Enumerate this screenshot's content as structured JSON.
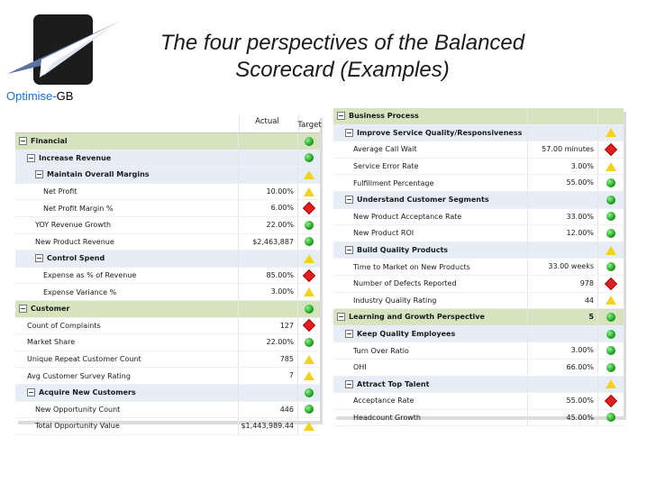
{
  "header": {
    "brand_primary": "Optimise-",
    "brand_secondary": "GB",
    "title_line1": "The four perspectives of the Balanced",
    "title_line2": "Scorecard (Examples)"
  },
  "left": {
    "col_actual": "Actual",
    "col_target": "Target",
    "rows": [
      {
        "label": "Financial",
        "value": "",
        "status": "green",
        "level": 0,
        "kind": "group"
      },
      {
        "label": "Increase Revenue",
        "value": "",
        "status": "green",
        "level": 1,
        "kind": "sub"
      },
      {
        "label": "Maintain Overall Margins",
        "value": "",
        "status": "yellow",
        "level": 2,
        "kind": "sub"
      },
      {
        "label": "Net Profit",
        "value": "10.00%",
        "status": "yellow",
        "level": 3,
        "kind": "item"
      },
      {
        "label": "Net Profit Margin %",
        "value": "6.00%",
        "status": "red",
        "level": 3,
        "kind": "item"
      },
      {
        "label": "YOY Revenue Growth",
        "value": "22.00%",
        "status": "green",
        "level": 2,
        "kind": "item"
      },
      {
        "label": "New Product Revenue",
        "value": "$2,463,887",
        "status": "green",
        "level": 2,
        "kind": "item"
      },
      {
        "label": "Control Spend",
        "value": "",
        "status": "yellow",
        "level": 2,
        "kind": "sub"
      },
      {
        "label": "Expense as % of Revenue",
        "value": "85.00%",
        "status": "red",
        "level": 3,
        "kind": "item"
      },
      {
        "label": "Expense Variance %",
        "value": "3.00%",
        "status": "yellow",
        "level": 3,
        "kind": "item"
      },
      {
        "label": "Customer",
        "value": "",
        "status": "green",
        "level": 0,
        "kind": "group"
      },
      {
        "label": "Count of Complaints",
        "value": "127",
        "status": "red",
        "level": 1,
        "kind": "item"
      },
      {
        "label": "Market Share",
        "value": "22.00%",
        "status": "green",
        "level": 1,
        "kind": "item"
      },
      {
        "label": "Unique Repeat Customer Count",
        "value": "785",
        "status": "yellow",
        "level": 1,
        "kind": "item"
      },
      {
        "label": "Avg Customer Survey Rating",
        "value": "7",
        "status": "yellow",
        "level": 1,
        "kind": "item"
      },
      {
        "label": "Acquire New Customers",
        "value": "",
        "status": "green",
        "level": 1,
        "kind": "sub"
      },
      {
        "label": "New Opportunity Count",
        "value": "446",
        "status": "green",
        "level": 2,
        "kind": "item"
      },
      {
        "label": "Total Opportunity Value",
        "value": "$1,443,989.44",
        "status": "yellow",
        "level": 2,
        "kind": "item"
      }
    ]
  },
  "right": {
    "rows": [
      {
        "label": "Business Process",
        "value": "",
        "status": "",
        "level": 0,
        "kind": "group"
      },
      {
        "label": "Improve Service Quality/Responsiveness",
        "value": "",
        "status": "yellow",
        "level": 1,
        "kind": "sub"
      },
      {
        "label": "Average Call Wait",
        "value": "57.00 minutes",
        "status": "red",
        "level": 2,
        "kind": "item"
      },
      {
        "label": "Service Error Rate",
        "value": "3.00%",
        "status": "yellow",
        "level": 2,
        "kind": "item"
      },
      {
        "label": "Fulfillment Percentage",
        "value": "55.00%",
        "status": "green",
        "level": 2,
        "kind": "item"
      },
      {
        "label": "Understand Customer Segments",
        "value": "",
        "status": "green",
        "level": 1,
        "kind": "sub"
      },
      {
        "label": "New Product Acceptance Rate",
        "value": "33.00%",
        "status": "green",
        "level": 2,
        "kind": "item"
      },
      {
        "label": "New Product ROI",
        "value": "12.00%",
        "status": "green",
        "level": 2,
        "kind": "item"
      },
      {
        "label": "Build Quality Products",
        "value": "",
        "status": "yellow",
        "level": 1,
        "kind": "sub"
      },
      {
        "label": "Time to Market on New Products",
        "value": "33.00 weeks",
        "status": "green",
        "level": 2,
        "kind": "item"
      },
      {
        "label": "Number of Defects Reported",
        "value": "978",
        "status": "red",
        "level": 2,
        "kind": "item"
      },
      {
        "label": "Industry Quality Rating",
        "value": "44",
        "status": "yellow",
        "level": 2,
        "kind": "item"
      },
      {
        "label": "Learning and Growth Perspective",
        "value": "5",
        "status": "green",
        "level": 0,
        "kind": "group"
      },
      {
        "label": "Keep Quality Employees",
        "value": "",
        "status": "green",
        "level": 1,
        "kind": "sub"
      },
      {
        "label": "Turn Over Ratio",
        "value": "3.00%",
        "status": "green",
        "level": 2,
        "kind": "item"
      },
      {
        "label": "OHI",
        "value": "66.00%",
        "status": "green",
        "level": 2,
        "kind": "item"
      },
      {
        "label": "Attract Top Talent",
        "value": "",
        "status": "yellow",
        "level": 1,
        "kind": "sub"
      },
      {
        "label": "Acceptance Rate",
        "value": "55.00%",
        "status": "red",
        "level": 2,
        "kind": "item"
      },
      {
        "label": "Headcount Growth",
        "value": "45.00%",
        "status": "green",
        "level": 2,
        "kind": "item"
      }
    ]
  },
  "colors": {
    "green": "#1ea21e",
    "yellow": "#f3d21c",
    "red": "#e02020",
    "group_bg": "#d6e3bf",
    "sub_bg": "#e7edf7"
  }
}
